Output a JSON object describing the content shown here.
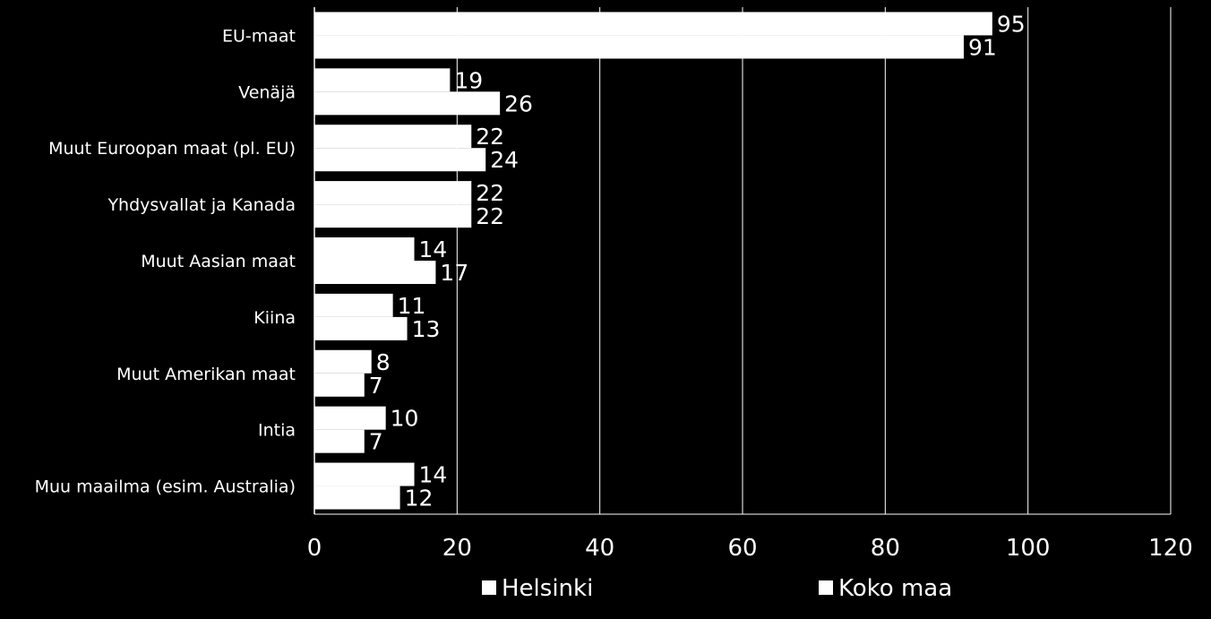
{
  "chart_data": {
    "type": "bar",
    "orientation": "horizontal",
    "categories": [
      "EU-maat",
      "Venäjä",
      "Muut Euroopan maat (pl. EU)",
      "Yhdysvallat ja Kanada",
      "Muut Aasian maat",
      "Kiina",
      "Muut Amerikan maat",
      "Intia",
      "Muu maailma (esim. Australia)"
    ],
    "series": [
      {
        "name": "Helsinki",
        "values": [
          95,
          19,
          22,
          22,
          14,
          11,
          8,
          10,
          14
        ],
        "color": "#ffffff"
      },
      {
        "name": "Koko maa",
        "values": [
          91,
          26,
          24,
          22,
          17,
          13,
          7,
          7,
          12
        ],
        "color": "#ffffff"
      }
    ],
    "xlim": [
      0,
      120
    ],
    "xticks": [
      0,
      20,
      40,
      60,
      80,
      100,
      120
    ],
    "grid": true,
    "legend": "bottom",
    "data_labels": true,
    "colors": {
      "background": "#000000",
      "bars": "#ffffff",
      "grid": "#ffffff",
      "text": "#ffffff"
    }
  }
}
